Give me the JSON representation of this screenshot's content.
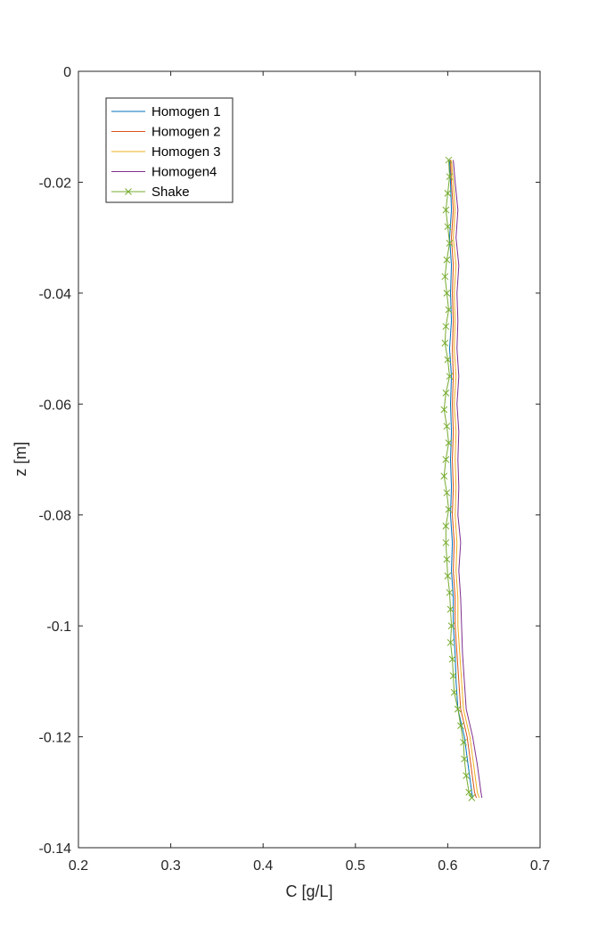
{
  "chart_data": {
    "type": "line",
    "title": "",
    "xlabel": "C [g/L]",
    "ylabel": "z [m]",
    "xlim": [
      0.2,
      0.7
    ],
    "ylim": [
      -0.14,
      0
    ],
    "xticks": [
      0.2,
      0.3,
      0.4,
      0.5,
      0.6,
      0.7
    ],
    "xtick_labels": [
      "0.2",
      "0.3",
      "0.4",
      "0.5",
      "0.6",
      "0.7"
    ],
    "yticks": [
      0,
      -0.02,
      -0.04,
      -0.06,
      -0.08,
      -0.1,
      -0.12,
      -0.14
    ],
    "ytick_labels": [
      "0",
      "-0.02",
      "-0.04",
      "-0.06",
      "-0.08",
      "-0.1",
      "-0.12",
      "-0.14"
    ],
    "grid": false,
    "legend_position": "top-left",
    "series": [
      {
        "name": "Homogen 1",
        "color": "#0072BD",
        "marker": "none",
        "points": [
          [
            0.602,
            -0.016
          ],
          [
            0.603,
            -0.02
          ],
          [
            0.604,
            -0.025
          ],
          [
            0.602,
            -0.03
          ],
          [
            0.604,
            -0.035
          ],
          [
            0.603,
            -0.04
          ],
          [
            0.604,
            -0.045
          ],
          [
            0.602,
            -0.05
          ],
          [
            0.604,
            -0.055
          ],
          [
            0.603,
            -0.06
          ],
          [
            0.604,
            -0.065
          ],
          [
            0.603,
            -0.07
          ],
          [
            0.604,
            -0.075
          ],
          [
            0.603,
            -0.08
          ],
          [
            0.605,
            -0.085
          ],
          [
            0.604,
            -0.09
          ],
          [
            0.606,
            -0.095
          ],
          [
            0.606,
            -0.1
          ],
          [
            0.608,
            -0.105
          ],
          [
            0.609,
            -0.11
          ],
          [
            0.611,
            -0.115
          ],
          [
            0.618,
            -0.12
          ],
          [
            0.622,
            -0.125
          ],
          [
            0.626,
            -0.13
          ],
          [
            0.627,
            -0.131
          ]
        ]
      },
      {
        "name": "Homogen 2",
        "color": "#D95319",
        "marker": "none",
        "points": [
          [
            0.603,
            -0.016
          ],
          [
            0.604,
            -0.02
          ],
          [
            0.606,
            -0.025
          ],
          [
            0.604,
            -0.03
          ],
          [
            0.606,
            -0.035
          ],
          [
            0.605,
            -0.04
          ],
          [
            0.606,
            -0.045
          ],
          [
            0.605,
            -0.05
          ],
          [
            0.606,
            -0.055
          ],
          [
            0.605,
            -0.06
          ],
          [
            0.606,
            -0.065
          ],
          [
            0.605,
            -0.07
          ],
          [
            0.606,
            -0.075
          ],
          [
            0.605,
            -0.08
          ],
          [
            0.607,
            -0.085
          ],
          [
            0.606,
            -0.09
          ],
          [
            0.608,
            -0.095
          ],
          [
            0.608,
            -0.1
          ],
          [
            0.61,
            -0.105
          ],
          [
            0.612,
            -0.11
          ],
          [
            0.614,
            -0.115
          ],
          [
            0.621,
            -0.12
          ],
          [
            0.625,
            -0.125
          ],
          [
            0.629,
            -0.13
          ],
          [
            0.631,
            -0.131
          ]
        ]
      },
      {
        "name": "Homogen 3",
        "color": "#EDB120",
        "marker": "none",
        "points": [
          [
            0.604,
            -0.016
          ],
          [
            0.606,
            -0.02
          ],
          [
            0.608,
            -0.025
          ],
          [
            0.606,
            -0.03
          ],
          [
            0.609,
            -0.035
          ],
          [
            0.607,
            -0.04
          ],
          [
            0.608,
            -0.045
          ],
          [
            0.607,
            -0.05
          ],
          [
            0.609,
            -0.055
          ],
          [
            0.607,
            -0.06
          ],
          [
            0.609,
            -0.065
          ],
          [
            0.608,
            -0.07
          ],
          [
            0.609,
            -0.075
          ],
          [
            0.608,
            -0.08
          ],
          [
            0.61,
            -0.085
          ],
          [
            0.609,
            -0.09
          ],
          [
            0.611,
            -0.095
          ],
          [
            0.611,
            -0.1
          ],
          [
            0.613,
            -0.105
          ],
          [
            0.615,
            -0.11
          ],
          [
            0.617,
            -0.115
          ],
          [
            0.624,
            -0.12
          ],
          [
            0.628,
            -0.125
          ],
          [
            0.632,
            -0.13
          ],
          [
            0.634,
            -0.131
          ]
        ]
      },
      {
        "name": "Homogen4",
        "color": "#7E2F8E",
        "marker": "none",
        "points": [
          [
            0.606,
            -0.016
          ],
          [
            0.608,
            -0.02
          ],
          [
            0.611,
            -0.025
          ],
          [
            0.609,
            -0.03
          ],
          [
            0.612,
            -0.035
          ],
          [
            0.61,
            -0.04
          ],
          [
            0.611,
            -0.045
          ],
          [
            0.61,
            -0.05
          ],
          [
            0.612,
            -0.055
          ],
          [
            0.61,
            -0.06
          ],
          [
            0.612,
            -0.065
          ],
          [
            0.611,
            -0.07
          ],
          [
            0.612,
            -0.075
          ],
          [
            0.611,
            -0.08
          ],
          [
            0.614,
            -0.085
          ],
          [
            0.612,
            -0.09
          ],
          [
            0.614,
            -0.095
          ],
          [
            0.615,
            -0.1
          ],
          [
            0.616,
            -0.105
          ],
          [
            0.618,
            -0.11
          ],
          [
            0.62,
            -0.115
          ],
          [
            0.627,
            -0.12
          ],
          [
            0.632,
            -0.125
          ],
          [
            0.636,
            -0.13
          ],
          [
            0.637,
            -0.131
          ]
        ]
      },
      {
        "name": "Shake",
        "color": "#77AC30",
        "marker": "x",
        "points": [
          [
            0.601,
            -0.016
          ],
          [
            0.602,
            -0.019
          ],
          [
            0.6,
            -0.022
          ],
          [
            0.598,
            -0.025
          ],
          [
            0.6,
            -0.028
          ],
          [
            0.602,
            -0.031
          ],
          [
            0.599,
            -0.034
          ],
          [
            0.597,
            -0.037
          ],
          [
            0.599,
            -0.04
          ],
          [
            0.601,
            -0.043
          ],
          [
            0.598,
            -0.046
          ],
          [
            0.597,
            -0.049
          ],
          [
            0.6,
            -0.052
          ],
          [
            0.602,
            -0.055
          ],
          [
            0.598,
            -0.058
          ],
          [
            0.596,
            -0.061
          ],
          [
            0.599,
            -0.064
          ],
          [
            0.601,
            -0.067
          ],
          [
            0.598,
            -0.07
          ],
          [
            0.596,
            -0.073
          ],
          [
            0.599,
            -0.076
          ],
          [
            0.601,
            -0.079
          ],
          [
            0.598,
            -0.082
          ],
          [
            0.598,
            -0.085
          ],
          [
            0.599,
            -0.088
          ],
          [
            0.6,
            -0.091
          ],
          [
            0.602,
            -0.094
          ],
          [
            0.603,
            -0.097
          ],
          [
            0.604,
            -0.1
          ],
          [
            0.603,
            -0.103
          ],
          [
            0.605,
            -0.106
          ],
          [
            0.606,
            -0.109
          ],
          [
            0.607,
            -0.112
          ],
          [
            0.611,
            -0.115
          ],
          [
            0.614,
            -0.118
          ],
          [
            0.617,
            -0.121
          ],
          [
            0.618,
            -0.124
          ],
          [
            0.62,
            -0.127
          ],
          [
            0.623,
            -0.13
          ],
          [
            0.626,
            -0.131
          ]
        ]
      }
    ]
  }
}
